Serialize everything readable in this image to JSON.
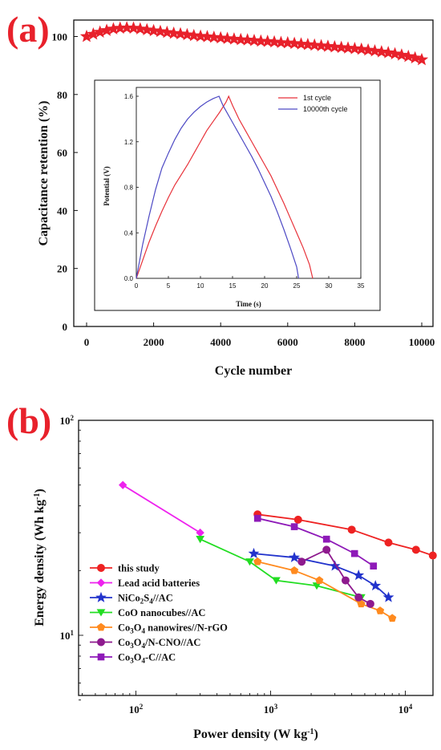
{
  "chart_data": [
    {
      "type": "scatter",
      "panel_label": "(a)",
      "xlabel": "Cycle number",
      "ylabel": "Capacitance retention (%)",
      "xlim": [
        0,
        10000
      ],
      "ylim": [
        0,
        110
      ],
      "xticks": [
        "0",
        "2000",
        "4000",
        "6000",
        "8000",
        "10000"
      ],
      "yticks": [
        "0",
        "20",
        "40",
        "60",
        "80",
        "100"
      ],
      "marker": "star",
      "color": "#e8212b",
      "series": [
        {
          "x": [
            0,
            200,
            400,
            600,
            800,
            1000,
            1200,
            1400,
            1600,
            1800,
            2000,
            2200,
            2400,
            2600,
            2800,
            3000,
            3200,
            3400,
            3600,
            3800,
            4000,
            4200,
            4400,
            4600,
            4800,
            5000,
            5200,
            5400,
            5600,
            5800,
            6000,
            6200,
            6400,
            6600,
            6800,
            7000,
            7200,
            7400,
            7600,
            7800,
            8000,
            8200,
            8400,
            8600,
            8800,
            9000,
            9200,
            9400,
            9600,
            9800,
            10000
          ],
          "y": [
            100,
            100.8,
            101.5,
            102.1,
            102.6,
            102.9,
            103,
            102.9,
            102.6,
            102.3,
            102,
            101.7,
            101.4,
            101.1,
            100.9,
            100.6,
            100.3,
            100.1,
            99.9,
            99.7,
            99.5,
            99.3,
            99.1,
            98.9,
            98.8,
            98.6,
            98.4,
            98.3,
            98.1,
            97.9,
            97.8,
            97.6,
            97.4,
            97.2,
            97,
            96.8,
            96.6,
            96.4,
            96.2,
            96,
            95.8,
            95.6,
            95.3,
            95,
            94.7,
            94.4,
            94,
            93.6,
            93.1,
            92.6,
            92
          ]
        }
      ],
      "inset": {
        "type": "line",
        "xlabel": "Time (s)",
        "ylabel": "Potential (V)",
        "xlim": [
          0,
          35
        ],
        "ylim": [
          0,
          1.6
        ],
        "xticks": [
          "0",
          "5",
          "10",
          "15",
          "20",
          "25",
          "30",
          "35"
        ],
        "yticks": [
          "0.0",
          "0.4",
          "0.8",
          "1.2",
          "1.6"
        ],
        "series": [
          {
            "name": "1st cycle",
            "color": "#e8323a",
            "x": [
              0,
              1,
              2,
              3,
              4,
              5,
              6,
              7,
              8,
              9,
              10,
              11,
              12,
              13,
              14,
              14.4,
              15,
              16,
              17,
              18,
              19,
              20,
              21,
              22,
              23,
              24,
              25,
              26,
              27,
              27.5
            ],
            "y": [
              0,
              0.16,
              0.32,
              0.46,
              0.59,
              0.71,
              0.82,
              0.91,
              1.0,
              1.1,
              1.2,
              1.3,
              1.38,
              1.46,
              1.55,
              1.6,
              1.52,
              1.4,
              1.3,
              1.2,
              1.1,
              1.0,
              0.9,
              0.78,
              0.66,
              0.53,
              0.4,
              0.27,
              0.12,
              0
            ]
          },
          {
            "name": "10000th cycle",
            "color": "#4d49c4",
            "x": [
              0,
              1,
              2,
              3,
              4,
              5,
              6,
              7,
              8,
              9,
              10,
              11,
              12,
              12.9,
              13.5,
              14,
              15,
              16,
              17,
              18,
              19,
              20,
              21,
              22,
              23,
              24,
              25,
              25.3
            ],
            "y": [
              0,
              0.3,
              0.55,
              0.78,
              0.97,
              1.1,
              1.22,
              1.32,
              1.4,
              1.46,
              1.51,
              1.55,
              1.58,
              1.6,
              1.52,
              1.47,
              1.37,
              1.27,
              1.17,
              1.07,
              0.96,
              0.84,
              0.72,
              0.58,
              0.43,
              0.27,
              0.1,
              0
            ]
          }
        ]
      }
    },
    {
      "type": "line",
      "panel_label": "(b)",
      "xlabel": "Power density (W kg⁻¹)",
      "ylabel": "Energy density (Wh kg⁻¹)",
      "xscale": "log",
      "yscale": "log",
      "xlim": [
        40,
        20000
      ],
      "ylim": [
        5,
        100
      ],
      "xticks": [
        {
          "value": 100,
          "base": "10",
          "exp": "2"
        },
        {
          "value": 1000,
          "base": "10",
          "exp": "3"
        },
        {
          "value": 10000,
          "base": "10",
          "exp": "4"
        }
      ],
      "yticks": [
        {
          "value": 10,
          "base": "10",
          "exp": "1"
        },
        {
          "value": 100,
          "base": "10",
          "exp": "2"
        }
      ],
      "legend_position": "bottom-left",
      "series": [
        {
          "name": "this study",
          "color": "#ee2222",
          "marker": "circle",
          "x": [
            800,
            1600,
            4000,
            7500,
            12000,
            16000
          ],
          "y": [
            36.5,
            34.5,
            31,
            27,
            25,
            23.5
          ]
        },
        {
          "name": "Lead acid batteries",
          "color": "#ee22ee",
          "marker": "diamond",
          "x": [
            80,
            300
          ],
          "y": [
            50,
            30
          ]
        },
        {
          "name": "NiCo₂S₄//AC",
          "color": "#2233cc",
          "marker": "star",
          "x": [
            750,
            1500,
            3000,
            4500,
            6000,
            7500
          ],
          "y": [
            24,
            23,
            21,
            19,
            17,
            15
          ]
        },
        {
          "name": "CoO nanocubes//AC",
          "color": "#22dd22",
          "marker": "triangle-down",
          "x": [
            300,
            700,
            1100,
            2200,
            4700
          ],
          "y": [
            28,
            22,
            18,
            17,
            15
          ]
        },
        {
          "name": "Co₃O₄ nanowires//N-rGO",
          "color": "#ff8a1e",
          "marker": "pentagon",
          "x": [
            800,
            1500,
            2300,
            4700,
            6500,
            8000
          ],
          "y": [
            22,
            20,
            18,
            14,
            13,
            12
          ]
        },
        {
          "name": "Co₃O₄/N-CNO//AC",
          "color": "#8e1a8e",
          "marker": "circle",
          "x": [
            1700,
            2600,
            3600,
            4500,
            5500
          ],
          "y": [
            22,
            25,
            18,
            15,
            14
          ]
        },
        {
          "name": "Co₃O₄-C//AC",
          "color": "#8e1ab8",
          "marker": "square",
          "x": [
            800,
            1500,
            2600,
            4200,
            5800
          ],
          "y": [
            35,
            32,
            28,
            24,
            21
          ]
        }
      ],
      "legend_labels": [
        {
          "pre": "this study"
        },
        {
          "pre": "Lead acid batteries"
        },
        {
          "pre": "NiCo",
          "s1": "2",
          "mid": "S",
          "s2": "4",
          "post": "//AC"
        },
        {
          "pre": "CoO nanocubes//AC"
        },
        {
          "pre": "Co",
          "s1": "3",
          "mid": "O",
          "s2": "4",
          "post": " nanowires//N-rGO"
        },
        {
          "pre": "Co",
          "s1": "3",
          "mid": "O",
          "s2": "4",
          "post": "/N-CNO//AC"
        },
        {
          "pre": "Co",
          "s1": "3",
          "mid": "O",
          "s2": "4",
          "post": "-C//AC"
        }
      ]
    }
  ]
}
